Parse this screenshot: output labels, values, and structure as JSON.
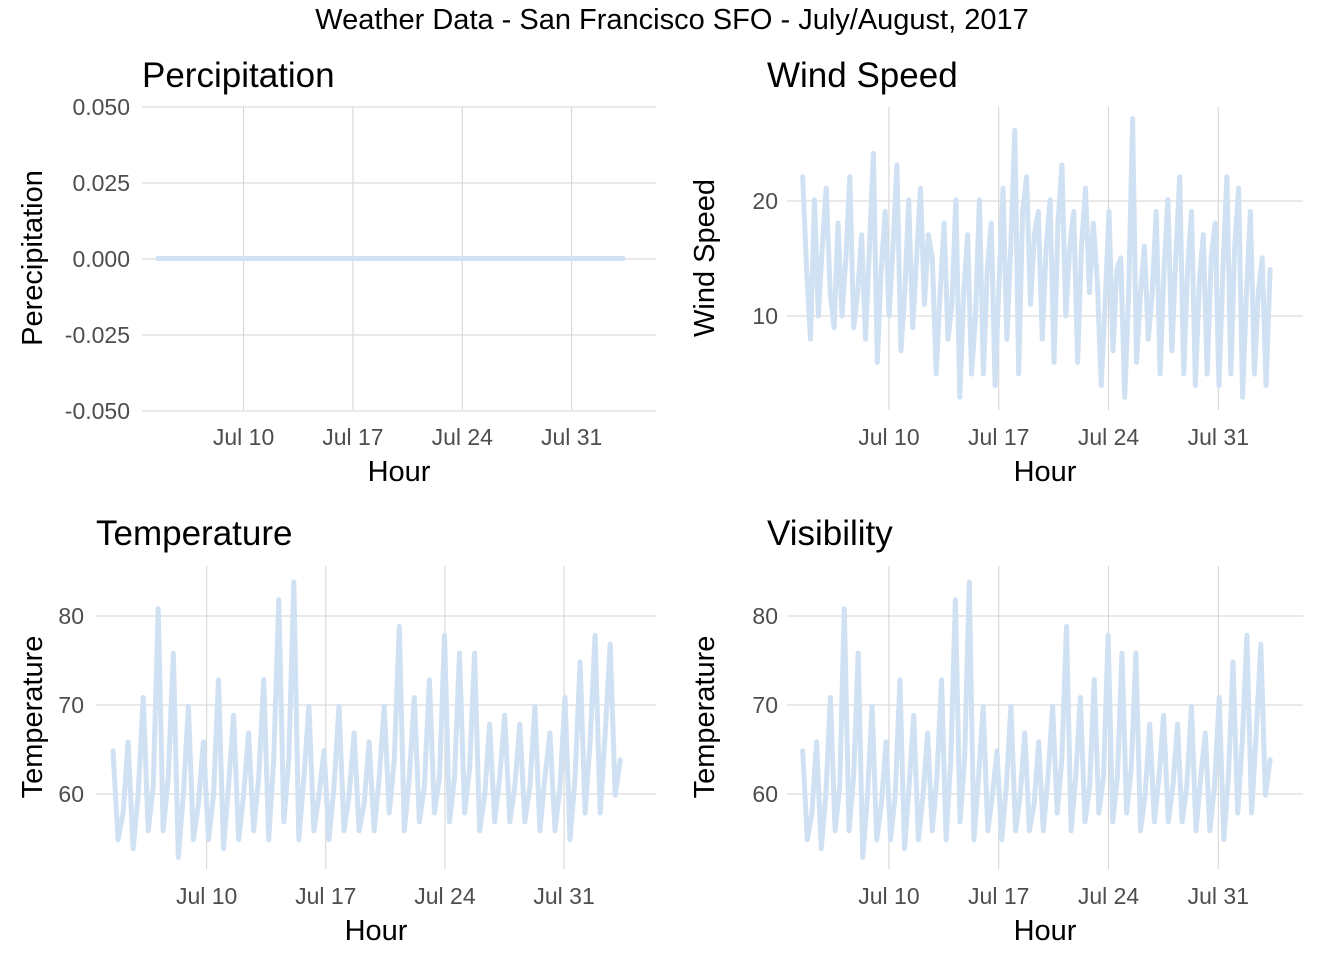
{
  "title": "Weather Data - San Francisco SFO - July/August, 2017",
  "colors": {
    "series": "#cfe1f2",
    "grid": "#d3d3d3",
    "tick_text": "#4d4d4d"
  },
  "chart_data": [
    {
      "type": "line",
      "title": "Percipitation",
      "xlabel": "Hour",
      "ylabel": "Perecipitation",
      "x_ticks": [
        "Jul 10",
        "Jul 17",
        "Jul 24",
        "Jul 31"
      ],
      "y_ticks": [
        "0.050",
        "0.025",
        "0.000",
        "-0.025",
        "-0.050"
      ],
      "ylim": [
        -0.05,
        0.05
      ],
      "xlim_days": [
        3.5,
        36.4
      ],
      "x_range_days": [
        4.5,
        34.3
      ],
      "points_per_day": 2,
      "values": [
        0
      ],
      "grid": true
    },
    {
      "type": "line",
      "title": "Wind Speed",
      "xlabel": "Hour",
      "ylabel": "Wind Speed",
      "x_ticks": [
        "Jul 10",
        "Jul 17",
        "Jul 24",
        "Jul 31"
      ],
      "y_ticks": [
        "20",
        "10"
      ],
      "ylim": [
        1.9,
        28
      ],
      "xlim_days": [
        3.5,
        36.4
      ],
      "x_range_days": [
        4.5,
        34.3
      ],
      "points_per_day": 3,
      "values": [
        22,
        14,
        8,
        20,
        10,
        16,
        21,
        12,
        9,
        18,
        10,
        15,
        22,
        9,
        12,
        17,
        8,
        16,
        24,
        6,
        14,
        19,
        10,
        16,
        23,
        7,
        12,
        20,
        9,
        15,
        21,
        11,
        17,
        15,
        5,
        12,
        18,
        8,
        11,
        20,
        3,
        12,
        17,
        5,
        10,
        20,
        5,
        14,
        18,
        4,
        13,
        21,
        8,
        16,
        26,
        5,
        19,
        22,
        11,
        17,
        19,
        8,
        16,
        20,
        6,
        18,
        23,
        10,
        16,
        19,
        6,
        16,
        21,
        12,
        18,
        13,
        4,
        11,
        19,
        7,
        14,
        15,
        3,
        12,
        27,
        6,
        12,
        16,
        8,
        12,
        19,
        5,
        14,
        20,
        7,
        15,
        22,
        5,
        14,
        19,
        4,
        13,
        17,
        5,
        15,
        18,
        4,
        14,
        22,
        5,
        16,
        21,
        3,
        12,
        19,
        5,
        12,
        15,
        4,
        14
      ],
      "grid": true
    },
    {
      "type": "line",
      "title": "Temperature",
      "xlabel": "Hour",
      "ylabel": "Temperature",
      "x_ticks": [
        "Jul 10",
        "Jul 17",
        "Jul 24",
        "Jul 31"
      ],
      "y_ticks": [
        "80",
        "70",
        "60"
      ],
      "ylim": [
        51.7,
        85.8
      ],
      "xlim_days": [
        3.5,
        36.4
      ],
      "x_range_days": [
        4.5,
        34.3
      ],
      "points_per_day": 3,
      "values": [
        65,
        55,
        58,
        66,
        54,
        60,
        71,
        56,
        61,
        81,
        56,
        62,
        76,
        53,
        60,
        70,
        55,
        59,
        66,
        55,
        60,
        73,
        54,
        61,
        69,
        55,
        60,
        67,
        56,
        62,
        73,
        55,
        64,
        82,
        57,
        64,
        84,
        55,
        62,
        70,
        56,
        60,
        65,
        55,
        61,
        70,
        56,
        60,
        67,
        56,
        59,
        66,
        56,
        62,
        70,
        58,
        64,
        79,
        56,
        62,
        71,
        57,
        61,
        73,
        58,
        62,
        78,
        57,
        62,
        76,
        58,
        63,
        76,
        56,
        60,
        68,
        57,
        62,
        69,
        57,
        61,
        68,
        57,
        61,
        70,
        56,
        62,
        67,
        56,
        61,
        71,
        55,
        62,
        75,
        58,
        66,
        78,
        58,
        67,
        77,
        60,
        64
      ],
      "grid": true
    },
    {
      "type": "line",
      "title": "Visibility",
      "xlabel": "Hour",
      "ylabel": "Temperature",
      "x_ticks": [
        "Jul 10",
        "Jul 17",
        "Jul 24",
        "Jul 31"
      ],
      "y_ticks": [
        "80",
        "70",
        "60"
      ],
      "ylim": [
        51.7,
        85.8
      ],
      "xlim_days": [
        3.5,
        36.4
      ],
      "x_range_days": [
        4.5,
        34.3
      ],
      "points_per_day": 3,
      "values": [
        65,
        55,
        58,
        66,
        54,
        60,
        71,
        56,
        61,
        81,
        56,
        62,
        76,
        53,
        60,
        70,
        55,
        59,
        66,
        55,
        60,
        73,
        54,
        61,
        69,
        55,
        60,
        67,
        56,
        62,
        73,
        55,
        64,
        82,
        57,
        64,
        84,
        55,
        62,
        70,
        56,
        60,
        65,
        55,
        61,
        70,
        56,
        60,
        67,
        56,
        59,
        66,
        56,
        62,
        70,
        58,
        64,
        79,
        56,
        62,
        71,
        57,
        61,
        73,
        58,
        62,
        78,
        57,
        62,
        76,
        58,
        63,
        76,
        56,
        60,
        68,
        57,
        62,
        69,
        57,
        61,
        68,
        57,
        61,
        70,
        56,
        62,
        67,
        56,
        61,
        71,
        55,
        62,
        75,
        58,
        66,
        78,
        58,
        67,
        77,
        60,
        64
      ],
      "grid": true
    }
  ]
}
